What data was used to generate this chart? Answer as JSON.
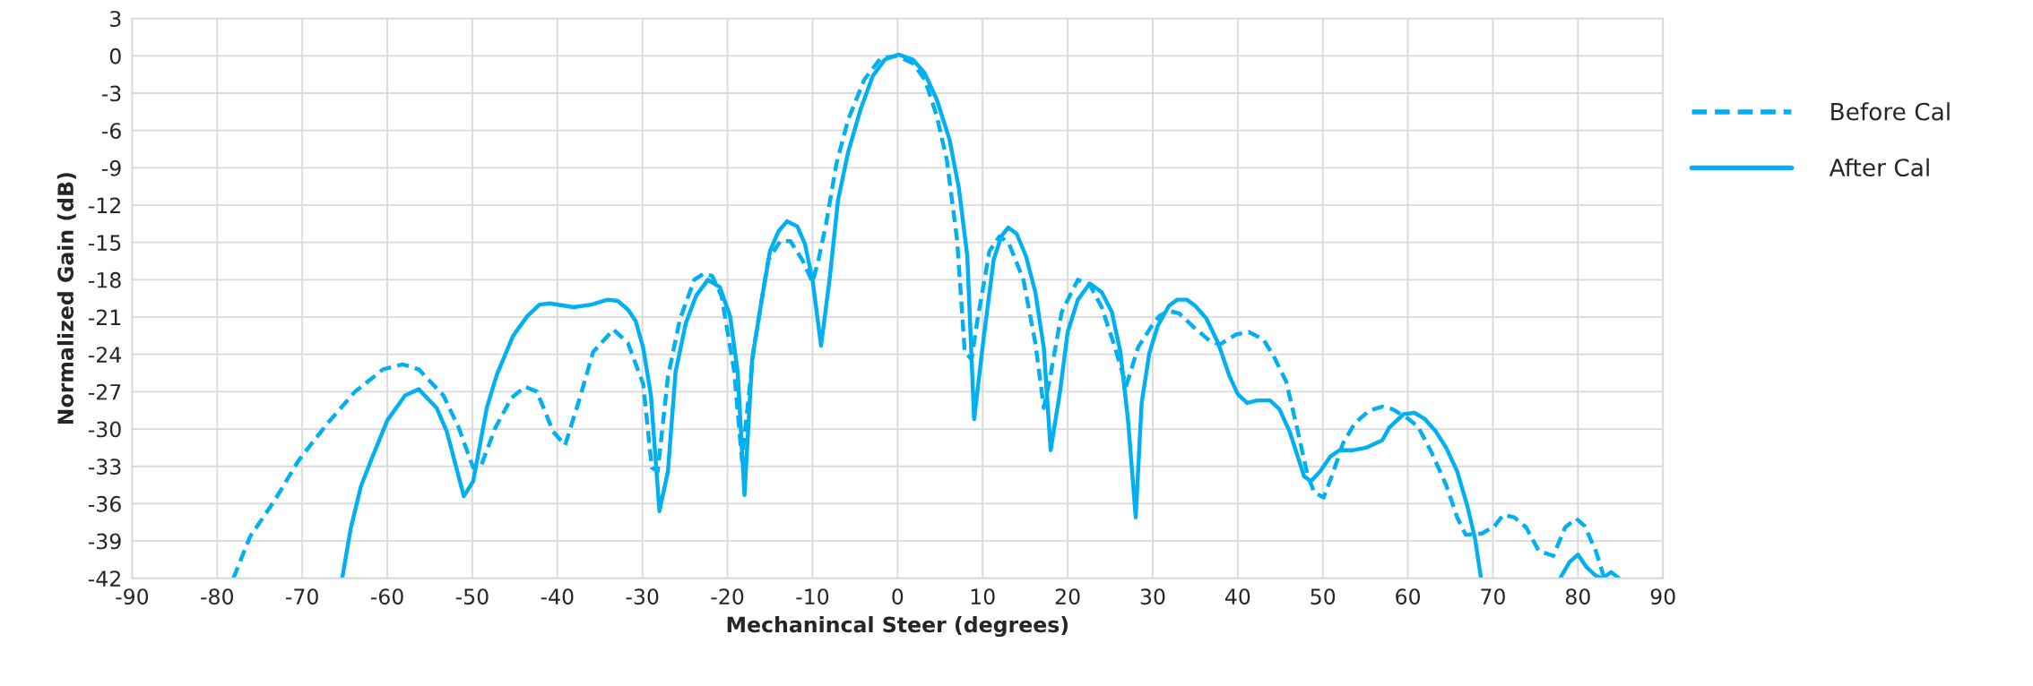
{
  "chart_data": {
    "type": "line",
    "xlabel": "Mechanincal Steer (degrees)",
    "ylabel": "Normalized Gain (dB)",
    "xlim": [
      -90,
      90
    ],
    "xticks": [
      -90,
      -80,
      -70,
      -60,
      -50,
      -40,
      -30,
      -20,
      -10,
      0,
      10,
      20,
      30,
      40,
      50,
      60,
      70,
      80,
      90
    ],
    "ylim": [
      -42,
      3
    ],
    "yticks": [
      -42,
      -39,
      -36,
      -33,
      -30,
      -27,
      -24,
      -21,
      -18,
      -15,
      -12,
      -9,
      -6,
      -3,
      0,
      3
    ],
    "grid": true,
    "legend": "right",
    "marker": "none",
    "series": [
      {
        "name": "Before Cal",
        "color": "#00b0f0",
        "line_style": "dashed",
        "x": [
          -78.1,
          -76.1,
          -73.3,
          -70.4,
          -67.1,
          -63.8,
          -60.5,
          -58.2,
          -56.3,
          -53.4,
          -51.6,
          -49.9,
          -49.0,
          -47.3,
          -45.4,
          -43.8,
          -42.4,
          -40.5,
          -39.1,
          -37.4,
          -35.8,
          -33.4,
          -31.7,
          -29.9,
          -28.9,
          -28.2,
          -27.0,
          -25.6,
          -23.9,
          -22.8,
          -21.8,
          -20.7,
          -19.2,
          -18.3,
          -16.9,
          -15.2,
          -13.8,
          -12.6,
          -11.2,
          -10.0,
          -9.3,
          -8.4,
          -7.2,
          -5.8,
          -3.9,
          -2.0,
          -0.1,
          1.8,
          3.2,
          4.6,
          5.8,
          7.0,
          7.9,
          8.7,
          9.4,
          10.8,
          12.0,
          13.1,
          14.8,
          16.2,
          17.2,
          17.9,
          19.3,
          21.2,
          22.6,
          24.0,
          25.4,
          26.9,
          28.3,
          29.8,
          30.8,
          31.9,
          33.1,
          34.8,
          36.7,
          37.9,
          39.8,
          41.3,
          43.0,
          44.2,
          45.7,
          46.9,
          48.2,
          49.0,
          50.1,
          51.1,
          52.4,
          53.8,
          55.5,
          57.0,
          58.2,
          59.9,
          61.2,
          62.8,
          64.5,
          65.8,
          66.8,
          68.7,
          70.2,
          71.2,
          72.5,
          73.9,
          75.4,
          77.1,
          78.5,
          79.8,
          80.8,
          82.1,
          83.1
        ],
        "values": [
          -42,
          -38.6,
          -35.8,
          -32.5,
          -29.6,
          -27.0,
          -25.2,
          -24.8,
          -25.2,
          -27.3,
          -29.9,
          -33.1,
          -33.0,
          -29.9,
          -27.5,
          -26.6,
          -27.0,
          -30.2,
          -31.3,
          -27.6,
          -23.8,
          -22.0,
          -23.1,
          -26.4,
          -33.1,
          -33.4,
          -25.8,
          -21.2,
          -18.0,
          -17.5,
          -17.7,
          -19.3,
          -25.4,
          -32.5,
          -23.5,
          -16.4,
          -14.9,
          -14.9,
          -16.4,
          -18.2,
          -16.4,
          -13.5,
          -8.7,
          -5.1,
          -1.9,
          -0.2,
          0.0,
          -0.6,
          -1.9,
          -4.8,
          -8.4,
          -14.8,
          -23.8,
          -24.4,
          -21.2,
          -15.7,
          -14.5,
          -15.1,
          -18.0,
          -23.1,
          -28.3,
          -26.0,
          -20.6,
          -18.0,
          -18.4,
          -20.2,
          -23.1,
          -26.5,
          -23.4,
          -21.8,
          -20.9,
          -20.5,
          -20.7,
          -21.8,
          -22.9,
          -23.2,
          -22.4,
          -22.2,
          -22.8,
          -24.1,
          -26.2,
          -29.7,
          -33.7,
          -35.1,
          -35.5,
          -33.7,
          -31.1,
          -29.5,
          -28.5,
          -28.2,
          -28.4,
          -29.1,
          -29.8,
          -31.9,
          -34.5,
          -37.1,
          -38.5,
          -38.4,
          -37.8,
          -36.9,
          -37.1,
          -37.9,
          -39.8,
          -40.2,
          -37.9,
          -37.2,
          -37.8,
          -39.8,
          -42
        ]
      },
      {
        "name": "After Cal",
        "color": "#00b0f0",
        "line_style": "solid",
        "x": [
          -65.3,
          -64.3,
          -63.1,
          -61.9,
          -60.0,
          -57.9,
          -56.3,
          -54.2,
          -53.0,
          -51.0,
          -49.9,
          -48.3,
          -47.1,
          -45.2,
          -43.5,
          -42.1,
          -40.9,
          -38.1,
          -36.0,
          -34.1,
          -32.9,
          -31.7,
          -30.8,
          -29.9,
          -29.0,
          -28.0,
          -27.0,
          -26.1,
          -24.9,
          -23.7,
          -22.3,
          -20.9,
          -19.7,
          -18.8,
          -18.0,
          -17.1,
          -15.9,
          -15.0,
          -14.0,
          -13.0,
          -11.8,
          -10.9,
          -10.0,
          -9.0,
          -8.0,
          -7.0,
          -5.8,
          -4.3,
          -2.9,
          -1.5,
          0.1,
          1.8,
          3.2,
          4.6,
          6.1,
          7.2,
          8.2,
          9.0,
          10.1,
          11.3,
          12.2,
          13.0,
          14.0,
          15.1,
          16.2,
          17.2,
          18.0,
          19.1,
          20.0,
          21.2,
          22.6,
          24.0,
          25.2,
          26.2,
          27.1,
          28.0,
          28.7,
          29.6,
          30.6,
          31.9,
          32.9,
          34.0,
          35.0,
          36.3,
          37.7,
          39.0,
          40.0,
          41.1,
          42.3,
          43.8,
          44.9,
          46.1,
          47.8,
          48.6,
          49.7,
          50.9,
          52.0,
          53.6,
          55.1,
          57.0,
          57.8,
          59.5,
          60.8,
          62.0,
          63.3,
          64.5,
          65.8,
          67.0,
          67.9,
          68.6,
          73.0,
          77.9,
          79.0,
          80.0,
          81.0,
          82.1,
          82.9,
          83.9,
          84.8
        ],
        "values": [
          -42,
          -38.0,
          -34.6,
          -32.5,
          -29.3,
          -27.3,
          -26.8,
          -28.3,
          -30.2,
          -35.4,
          -34.2,
          -28.3,
          -25.6,
          -22.5,
          -20.9,
          -20.0,
          -19.9,
          -20.2,
          -20.0,
          -19.6,
          -19.7,
          -20.4,
          -21.3,
          -23.5,
          -27.3,
          -36.6,
          -33.4,
          -25.4,
          -21.5,
          -19.3,
          -18.0,
          -18.6,
          -20.9,
          -25.4,
          -35.3,
          -24.4,
          -19.3,
          -15.7,
          -14.1,
          -13.3,
          -13.7,
          -15.1,
          -18.0,
          -23.3,
          -18.0,
          -11.6,
          -7.7,
          -4.2,
          -1.6,
          -0.3,
          0.1,
          -0.3,
          -1.4,
          -3.5,
          -6.7,
          -10.6,
          -16.1,
          -29.2,
          -22.8,
          -16.4,
          -14.5,
          -13.8,
          -14.3,
          -16.1,
          -19.0,
          -23.5,
          -31.7,
          -27.0,
          -22.2,
          -19.6,
          -18.3,
          -19.0,
          -20.6,
          -23.8,
          -29.3,
          -37.1,
          -27.9,
          -23.9,
          -21.7,
          -20.1,
          -19.6,
          -19.6,
          -20.1,
          -21.1,
          -23.1,
          -25.7,
          -27.2,
          -27.9,
          -27.7,
          -27.7,
          -28.4,
          -30.2,
          -33.8,
          -34.2,
          -33.4,
          -32.2,
          -31.7,
          -31.7,
          -31.5,
          -30.9,
          -29.9,
          -28.8,
          -28.7,
          -29.2,
          -30.2,
          -31.5,
          -33.4,
          -36.2,
          -38.8,
          -42,
          null,
          -42,
          -40.7,
          -40.1,
          -41.1,
          -41.8,
          -42,
          -41.5,
          -42
        ]
      }
    ]
  }
}
